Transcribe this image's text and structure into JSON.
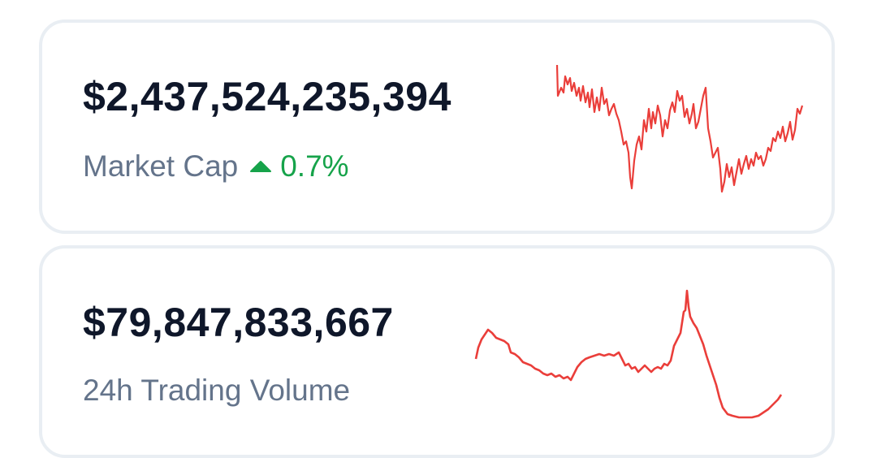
{
  "cards": [
    {
      "value": "$2,437,524,235,394",
      "label": "Market Cap",
      "change": "0.7%"
    },
    {
      "value": "$79,847,833,667",
      "label": "24h Trading Volume"
    }
  ]
}
